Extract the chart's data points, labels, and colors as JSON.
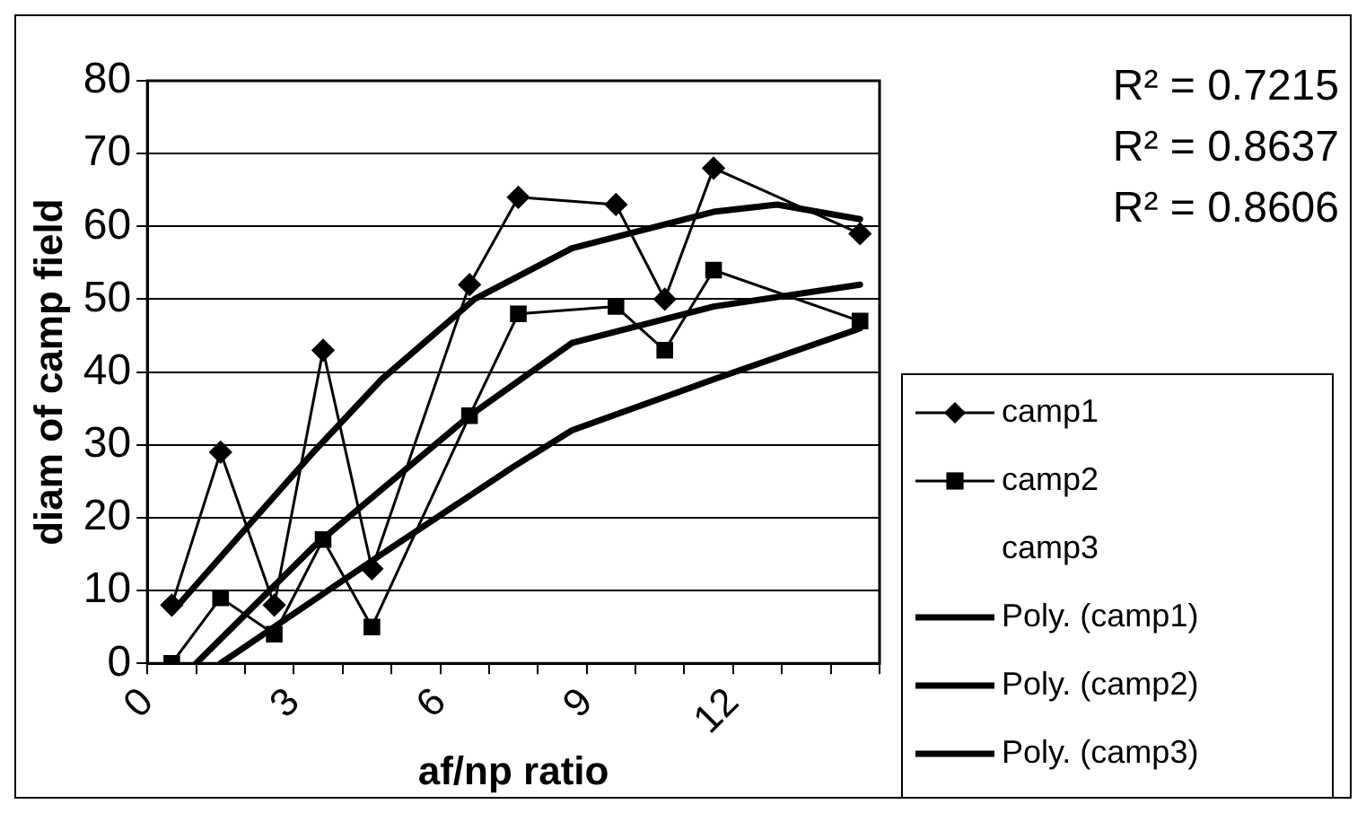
{
  "chart_data": {
    "type": "line",
    "xlabel": "af/np ratio",
    "ylabel": "diam of camp field",
    "xlim": [
      0,
      15
    ],
    "xticks": [
      0,
      {
        "value": 1,
        "label": null
      },
      {
        "value": 2,
        "label": null
      },
      3,
      {
        "value": 4,
        "label": null
      },
      {
        "value": 5,
        "label": null
      },
      6,
      {
        "value": 7,
        "label": null
      },
      {
        "value": 8,
        "label": null
      },
      9,
      {
        "value": 10,
        "label": null
      },
      {
        "value": 11,
        "label": null
      },
      12,
      {
        "value": 13,
        "label": null
      },
      {
        "value": 14,
        "label": null
      },
      {
        "value": 15,
        "label": null
      }
    ],
    "ylim": [
      0,
      80
    ],
    "yticks": [
      0,
      10,
      20,
      30,
      40,
      50,
      60,
      70,
      80
    ],
    "grid": "y",
    "legend": "bottom right",
    "annotations": [
      "R² = 0.7215",
      "R² = 0.8637",
      "R² = 0.8606"
    ],
    "series": [
      {
        "name": "camp1",
        "color": "#000000",
        "marker": "diamond",
        "x": [
          0.5,
          1.5,
          2.6,
          3.6,
          4.6,
          6.6,
          7.6,
          9.6,
          10.6,
          11.6,
          14.6
        ],
        "values": [
          8,
          29,
          8,
          43,
          13,
          52,
          64,
          63,
          50,
          68,
          59
        ]
      },
      {
        "name": "camp2",
        "color": "#000000",
        "marker": "square",
        "x": [
          0.5,
          1.5,
          2.6,
          3.6,
          4.6,
          6.6,
          7.6,
          9.6,
          10.6,
          11.6,
          14.6
        ],
        "values": [
          0,
          9,
          4,
          17,
          5,
          34,
          48,
          49,
          43,
          54,
          47
        ]
      },
      {
        "name": "camp3",
        "marker": "none"
      },
      {
        "name": "Poly. (camp1)",
        "color": "#000000",
        "marker": "none",
        "x": [
          0.5,
          3.4,
          4.8,
          6.7,
          8.7,
          11.6,
          12.9,
          14.6
        ],
        "values": [
          7,
          29,
          39,
          50,
          57,
          62,
          63,
          61
        ]
      },
      {
        "name": "Poly. (camp2)",
        "color": "#000000",
        "marker": "none",
        "x": [
          1,
          3.4,
          6.6,
          8.7,
          11.6,
          14.6
        ],
        "values": [
          0,
          16,
          34,
          44,
          49,
          52
        ]
      },
      {
        "name": "Poly. (camp3)",
        "color": "#000000",
        "marker": "none",
        "x": [
          1.5,
          2.6,
          4.8,
          7.5,
          8.7,
          11.6,
          14.6
        ],
        "values": [
          0,
          5,
          15,
          27,
          32,
          39,
          46
        ]
      }
    ]
  }
}
